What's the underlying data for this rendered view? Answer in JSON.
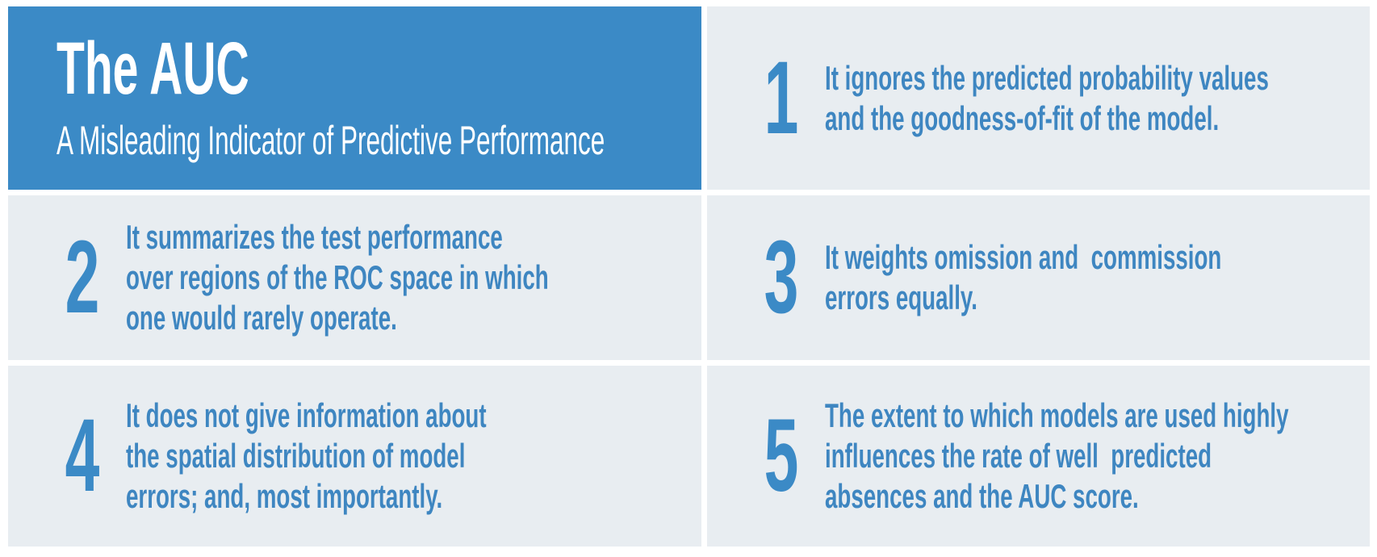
{
  "infographic": {
    "title": "The AUC",
    "subtitle": "A Misleading Indicator of Predictive Performance",
    "points": [
      {
        "number": "1",
        "text": "It ignores the predicted probability values\nand the goodness-of-fit of the model."
      },
      {
        "number": "2",
        "text": "It summarizes the test performance\nover regions of the ROC space in which\none would rarely operate."
      },
      {
        "number": "3",
        "text": "It weights omission and  commission\nerrors equally."
      },
      {
        "number": "4",
        "text": "It does not give information about\nthe spatial distribution of model\nerrors; and, most importantly."
      },
      {
        "number": "5",
        "text": "The extent to which models are used highly\ninfluences the rate of well  predicted\nabsences and the AUC score."
      }
    ],
    "colors": {
      "brand_blue": "#3b8ac6",
      "text_blue": "#3e86c1",
      "cell_bg": "#e8edf1",
      "page_bg": "#ffffff",
      "title_text": "#ffffff"
    }
  }
}
